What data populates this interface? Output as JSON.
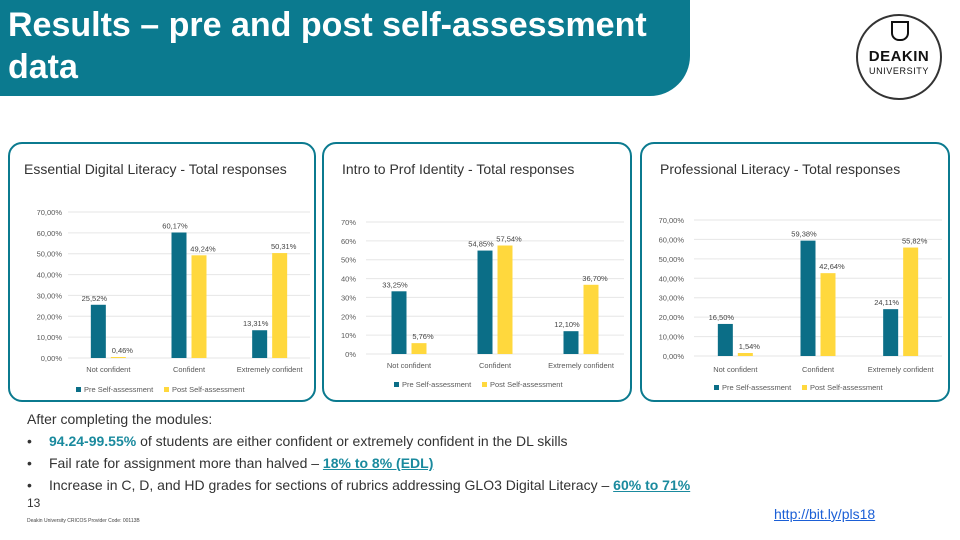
{
  "slide": {
    "title": "Results – pre and post self-assessment data",
    "logo": {
      "name": "DEAKIN",
      "sub": "UNIVERSITY"
    },
    "slide_number": "13",
    "footnote": "Deakin University CRICOS Provider Code: 00113B",
    "link": "http://bit.ly/pls18"
  },
  "findings": {
    "intro": "After completing the modules:",
    "items": [
      {
        "prefix": "",
        "highlight": "94.24-99.55%",
        "rest": " of students are either confident or extremely confident in the DL skills"
      },
      {
        "prefix": "Fail rate for assignment more than halved – ",
        "highlight": "18% to 8% (EDL)",
        "rest": ""
      },
      {
        "prefix": "Increase in C, D, and HD grades for sections of rubrics addressing GLO3 Digital Literacy – ",
        "highlight": "60% to 71%",
        "rest": ""
      }
    ]
  },
  "colors": {
    "pre": "#0b6e87",
    "post": "#ffd83d",
    "accent": "#0b7a8f"
  },
  "chart_data": [
    {
      "type": "bar",
      "title": "Essential Digital Literacy - Total responses",
      "categories": [
        "Not confident",
        "Confident",
        "Extremely confident"
      ],
      "yticks": [
        "0,00%",
        "10,00%",
        "20,00%",
        "30,00%",
        "40,00%",
        "50,00%",
        "60,00%",
        "70,00%"
      ],
      "ylim": [
        0,
        70
      ],
      "series": [
        {
          "name": "Pre Self-assessment",
          "values": [
            25.52,
            60.17,
            13.31
          ],
          "labels": [
            "25,52%",
            "60,17%",
            "13,31%"
          ]
        },
        {
          "name": "Post Self-assessment",
          "values": [
            0.46,
            49.24,
            50.31
          ],
          "labels": [
            "0,46%",
            "49,24%",
            "50,31%"
          ]
        }
      ]
    },
    {
      "type": "bar",
      "title": "Intro to Prof Identity - Total responses",
      "categories": [
        "Not confident",
        "Confident",
        "Extremely confident"
      ],
      "yticks": [
        "0%",
        "10%",
        "20%",
        "30%",
        "40%",
        "50%",
        "60%",
        "70%"
      ],
      "ylim": [
        0,
        70
      ],
      "series": [
        {
          "name": "Pre Self-assessment",
          "values": [
            33.25,
            54.85,
            12.1
          ],
          "labels": [
            "33,25%",
            "54,85%",
            "12,10%"
          ]
        },
        {
          "name": "Post Self-assessment",
          "values": [
            5.76,
            57.54,
            36.7
          ],
          "labels": [
            "5,76%",
            "57,54%",
            "36,70%"
          ]
        }
      ]
    },
    {
      "type": "bar",
      "title": "Professional Literacy - Total responses",
      "categories": [
        "Not confident",
        "Confident",
        "Extremely confident"
      ],
      "yticks": [
        "0,00%",
        "10,00%",
        "20,00%",
        "30,00%",
        "40,00%",
        "50,00%",
        "60,00%",
        "70,00%"
      ],
      "ylim": [
        0,
        70
      ],
      "series": [
        {
          "name": "Pre Self-assessment",
          "values": [
            16.5,
            59.38,
            24.11
          ],
          "labels": [
            "16,50%",
            "59,38%",
            "24,11%"
          ]
        },
        {
          "name": "Post Self-assessment",
          "values": [
            1.54,
            42.64,
            55.82
          ],
          "labels": [
            "1,54%",
            "42,64%",
            "55,82%"
          ]
        }
      ]
    }
  ]
}
